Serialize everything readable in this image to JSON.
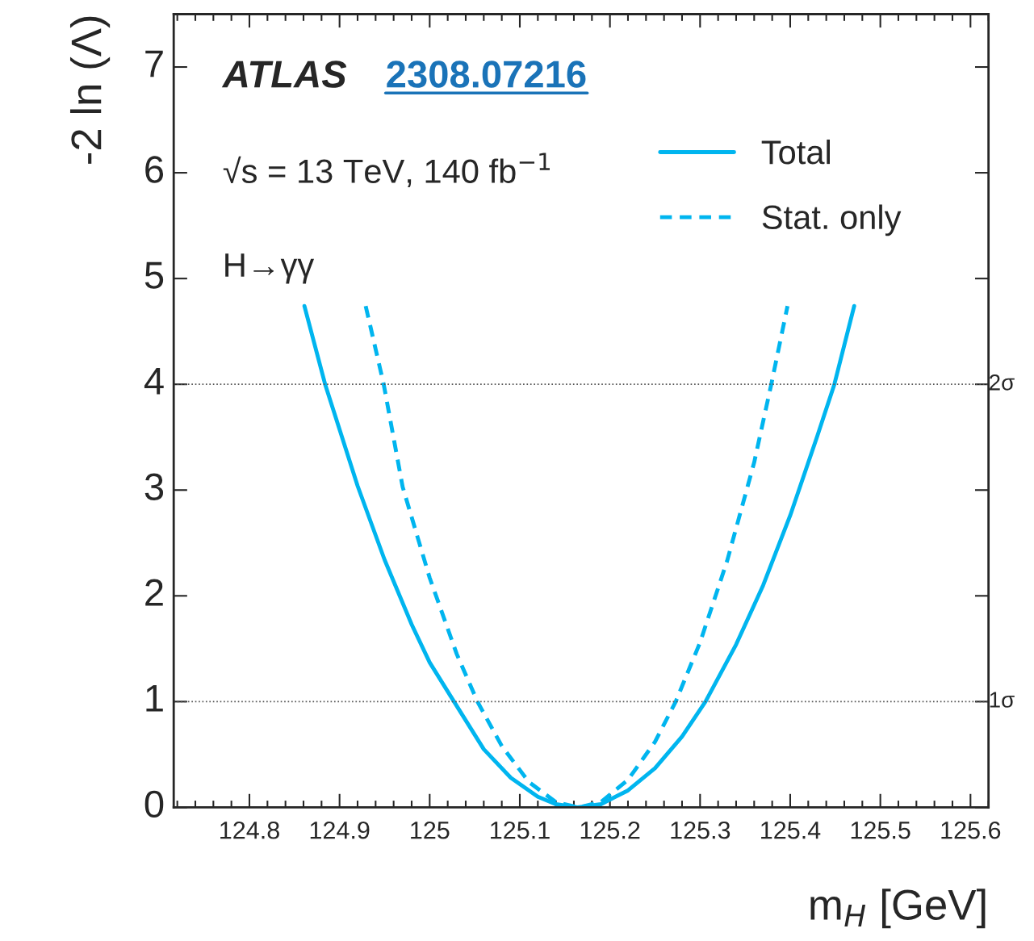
{
  "chart_data": {
    "type": "line",
    "xlabel": "m$_{H}$ [GeV]",
    "ylabel": "-2 ln (Λ)",
    "series": [
      {
        "name": "Total",
        "color": "#00b5ef",
        "line_style": "solid",
        "x": [
          124.861,
          124.884,
          124.92,
          124.95,
          124.98,
          125.0,
          125.027,
          125.06,
          125.09,
          125.12,
          125.14,
          125.164,
          125.19,
          125.22,
          125.25,
          125.28,
          125.306,
          125.34,
          125.37,
          125.4,
          125.43,
          125.449,
          125.471
        ],
        "values": [
          4.74,
          4.0,
          3.04,
          2.34,
          1.73,
          1.37,
          1.0,
          0.55,
          0.28,
          0.1,
          0.03,
          0,
          0.03,
          0.16,
          0.37,
          0.67,
          1.0,
          1.54,
          2.1,
          2.76,
          3.51,
          4.0,
          4.74
        ]
      },
      {
        "name": "Stat. only",
        "color": "#00b5ef",
        "line_style": "dashed",
        "x": [
          124.929,
          124.949,
          124.97,
          125.0,
          125.03,
          125.053,
          125.08,
          125.11,
          125.14,
          125.165,
          125.19,
          125.22,
          125.25,
          125.273,
          125.3,
          125.33,
          125.36,
          125.379,
          125.397
        ],
        "values": [
          4.74,
          4.0,
          3.03,
          2.17,
          1.45,
          1.0,
          0.58,
          0.24,
          0.05,
          0,
          0.05,
          0.26,
          0.62,
          1.0,
          1.56,
          2.33,
          3.26,
          4.0,
          4.74
        ]
      }
    ],
    "xlim": [
      124.716,
      125.62
    ],
    "ylim": [
      0,
      7.5
    ],
    "xticks": [
      124.8,
      124.9,
      125,
      125.1,
      125.2,
      125.3,
      125.4,
      125.5,
      125.6
    ],
    "yticks": [
      0,
      1,
      2,
      3,
      4,
      5,
      6,
      7
    ],
    "ref_lines": [
      {
        "axis": "y",
        "value": 1,
        "label": "1σ",
        "color": "#555555",
        "line_style": "dotted"
      },
      {
        "axis": "y",
        "value": 4,
        "label": "2σ",
        "color": "#555555",
        "line_style": "dotted"
      }
    ],
    "annotations": [
      "ATLAS",
      "2308.07216",
      "√s = 13 TeV, 140 fb$^{−1}$",
      "H→γγ"
    ],
    "legend": "top right",
    "grid": false
  }
}
